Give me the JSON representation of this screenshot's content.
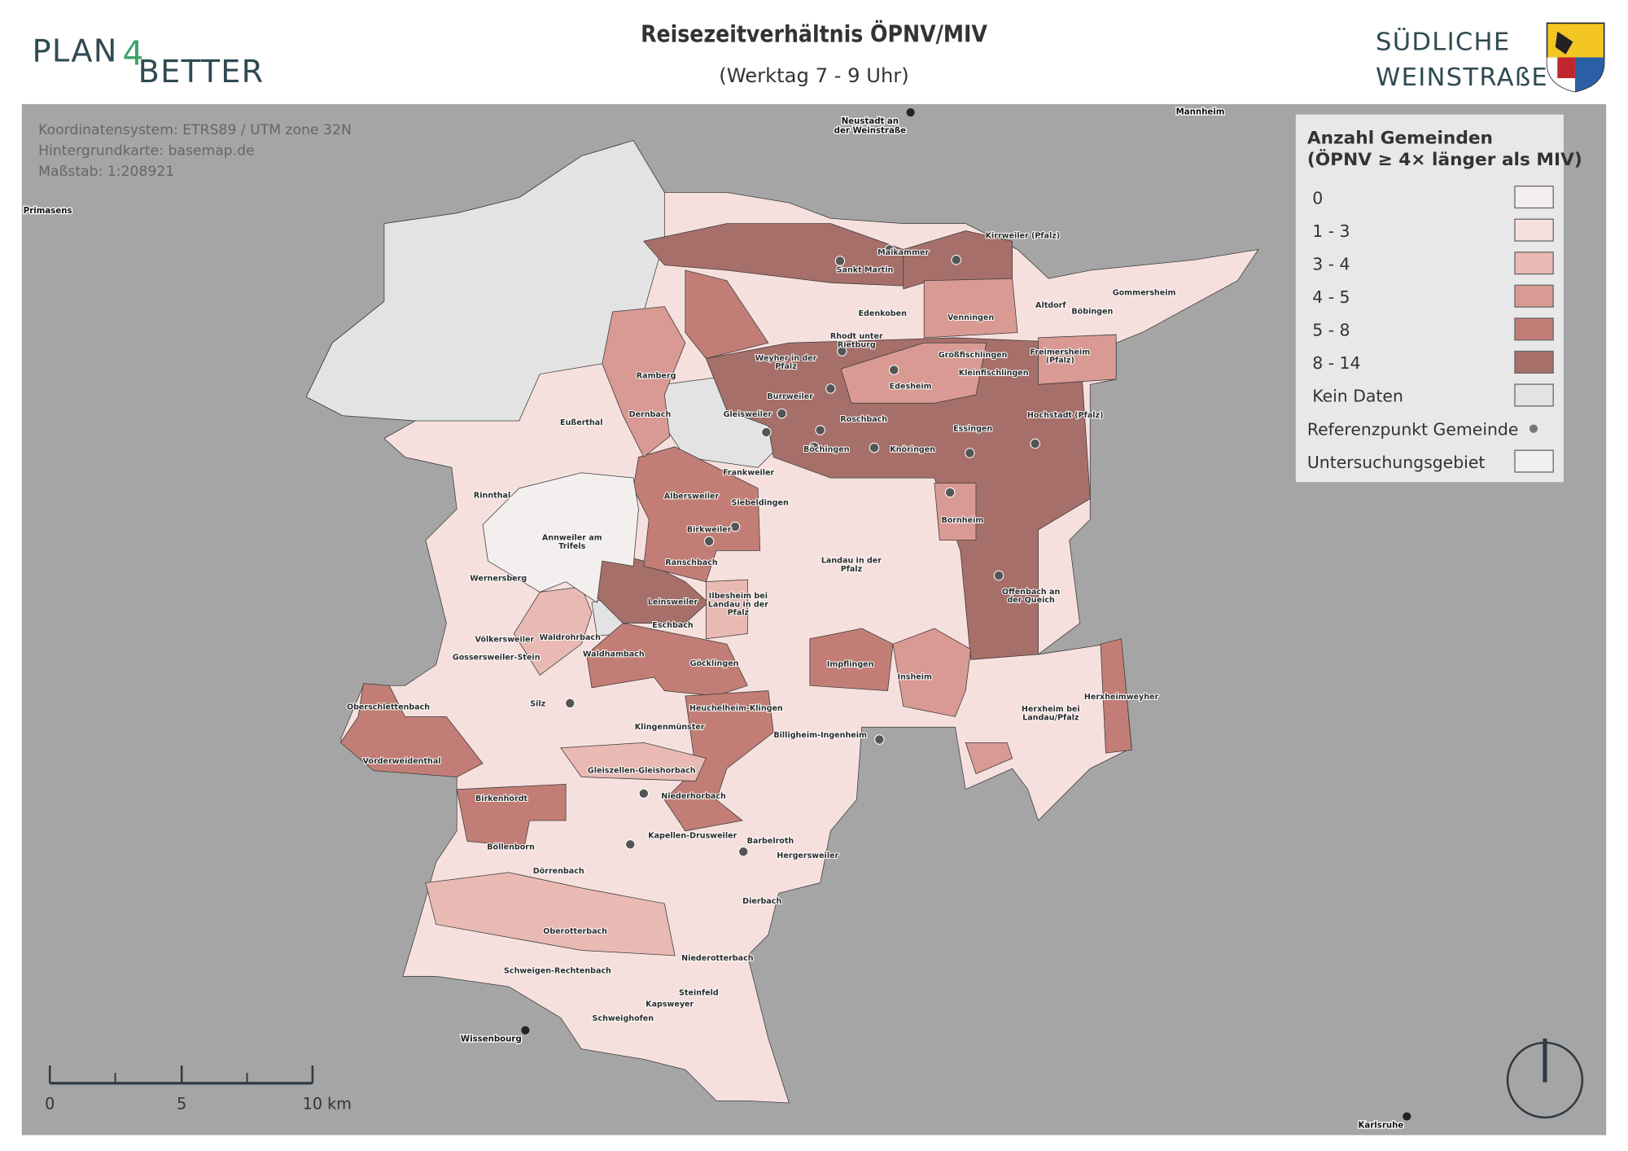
{
  "header": {
    "title": "Reisezeitverhältnis ÖPNV/MIV",
    "subtitle": "(Werktag 7 - 9 Uhr)",
    "logo_left": [
      "PLAN",
      "4",
      "BETTER"
    ],
    "logo_right": [
      "SÜDLICHE",
      "WEINSTRAßE"
    ]
  },
  "info": [
    "Koordinatensystem: ETRS89 / UTM zone 32N",
    "Hintergrundkarte: basemap.de",
    "Maßstab: 1:208921"
  ],
  "legend": {
    "title": [
      "Anzahl Gemeinden",
      "(ÖPNV ≥ 4× länger als MIV)"
    ],
    "items": [
      {
        "label": "0",
        "color": "#f4efef"
      },
      {
        "label": "1 - 3",
        "color": "#f6e0dd"
      },
      {
        "label": "3 - 4",
        "color": "#e9bab4"
      },
      {
        "label": "4 - 5",
        "color": "#d99a93"
      },
      {
        "label": "5 - 8",
        "color": "#c27e76"
      },
      {
        "label": "8 - 14",
        "color": "#a76f69"
      },
      {
        "label": "Kein Daten",
        "color": "#e3e3e3"
      },
      {
        "label": "Referenzpunkt Gemeinde",
        "color": "#777777"
      },
      {
        "label": "Untersuchungsgebiet",
        "color": "#efefef"
      }
    ]
  },
  "cities": [
    [
      "Neustadt an",
      "der Weinstraße"
    ],
    [
      "Mannheim"
    ],
    [
      "Primasens"
    ],
    [
      "Wissenbourg"
    ],
    [
      "Karlsruhe"
    ]
  ],
  "places": [
    [
      "Maikammer"
    ],
    [
      "Sankt Martin"
    ],
    [
      "Kirrweiler (Pfalz)"
    ],
    [
      "Edenkoben"
    ],
    [
      "Altdorf"
    ],
    [
      "Böbingen"
    ],
    [
      "Gommersheim"
    ],
    [
      "Venningen"
    ],
    [
      "Rhodt unter",
      "Rietburg"
    ],
    [
      "Weyher in der",
      "Pfalz"
    ],
    [
      "Großfischlingen"
    ],
    [
      "Kleinfischlingen"
    ],
    [
      "Freimersheim",
      "(Pfalz)"
    ],
    [
      "Ramberg"
    ],
    [
      "Edesheim"
    ],
    [
      "Burrweiler"
    ],
    [
      "Eußerthal"
    ],
    [
      "Dernbach"
    ],
    [
      "Gleisweiler"
    ],
    [
      "Roschbach"
    ],
    [
      "Hochstadt (Pfalz)"
    ],
    [
      "Essingen"
    ],
    [
      "Böchingen"
    ],
    [
      "Knöringen"
    ],
    [
      "Frankweiler"
    ],
    [
      "Rinnthal"
    ],
    [
      "Albersweiler"
    ],
    [
      "Siebeldingen"
    ],
    [
      "Bornheim"
    ],
    [
      "Birkweiler"
    ],
    [
      "Annweiler am",
      "Trifels"
    ],
    [
      "Landau in der",
      "Pfalz"
    ],
    [
      "Ranschbach"
    ],
    [
      "Wernersberg"
    ],
    [
      "Offenbach an",
      "der Queich"
    ],
    [
      "Leinsweiler"
    ],
    [
      "Ilbesheim bei",
      "Landau in der",
      "Pfalz"
    ],
    [
      "Eschbach"
    ],
    [
      "Völkersweiler"
    ],
    [
      "Waldrohrbach"
    ],
    [
      "Gossersweiler-Stein"
    ],
    [
      "Waldhambach"
    ],
    [
      "Göcklingen"
    ],
    [
      "Impflingen"
    ],
    [
      "Insheim"
    ],
    [
      "Herxheimweyher"
    ],
    [
      "Oberschlettenbach"
    ],
    [
      "Silz"
    ],
    [
      "Heuchelheim-Klingen"
    ],
    [
      "Herxheim bei",
      "Landau/Pfalz"
    ],
    [
      "Klingenmünster"
    ],
    [
      "Billigheim-Ingenheim"
    ],
    [
      "Vorderweidenthal"
    ],
    [
      "Gleiszellen-Gleishorbach"
    ],
    [
      "Niederhorbach"
    ],
    [
      "Birkenhördt"
    ],
    [
      "Kapellen-Drusweiler"
    ],
    [
      "Barbelroth"
    ],
    [
      "Böllenborn"
    ],
    [
      "Hergersweiler"
    ],
    [
      "Dörrenbach"
    ],
    [
      "Dierbach"
    ],
    [
      "Oberotterbach"
    ],
    [
      "Niederotterbach"
    ],
    [
      "Schweigen-Rechtenbach"
    ],
    [
      "Steinfeld"
    ],
    [
      "Kapsweyer"
    ],
    [
      "Schweighofen"
    ]
  ],
  "scale": [
    "0",
    "5",
    "10 km"
  ]
}
